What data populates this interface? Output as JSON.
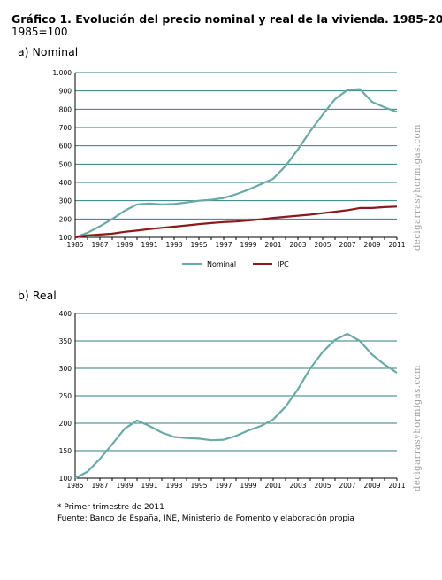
{
  "header": {
    "title": "Gráfico 1. Evolución del precio nominal y real de la vivienda.  1985-2011*",
    "subtitle": "1985=100"
  },
  "panels": {
    "a_label": "a) Nominal",
    "b_label": "b) Real"
  },
  "footnotes": {
    "note": "* Primer trimestre de 2011",
    "source": "Fuente: Banco de España, INE, Ministerio de Fomento y elaboración propia"
  },
  "watermark": "decigarrasyhormigas.com",
  "colors": {
    "nominal": "#6aaaa6",
    "ipc": "#8b1a1a",
    "grid": "#2f7f7f",
    "axis": "#000000"
  },
  "chart_data": [
    {
      "type": "line",
      "title": "a) Nominal",
      "xlim": [
        1985,
        2011
      ],
      "ylim": [
        100,
        1000
      ],
      "xticks": [
        "1985",
        "1987",
        "1989",
        "1991",
        "1993",
        "1995",
        "1997",
        "1999",
        "2001",
        "2003",
        "2005",
        "2007",
        "2009",
        "2011"
      ],
      "yticks": [
        "100",
        "200",
        "300",
        "400",
        "500",
        "600",
        "700",
        "800",
        "900",
        "1.000"
      ],
      "grid": true,
      "legend": "bottom",
      "series": [
        {
          "name": "Nominal",
          "x": [
            1985,
            1986,
            1987,
            1988,
            1989,
            1990,
            1991,
            1992,
            1993,
            1994,
            1995,
            1996,
            1997,
            1998,
            1999,
            2000,
            2001,
            2002,
            2003,
            2004,
            2005,
            2006,
            2007,
            2008,
            2009,
            2010,
            2011
          ],
          "values": [
            100,
            125,
            160,
            200,
            245,
            280,
            285,
            280,
            282,
            290,
            300,
            305,
            315,
            335,
            360,
            390,
            420,
            490,
            580,
            680,
            770,
            855,
            905,
            910,
            840,
            810,
            785
          ]
        },
        {
          "name": "IPC",
          "x": [
            1985,
            1986,
            1987,
            1988,
            1989,
            1990,
            1991,
            1992,
            1993,
            1994,
            1995,
            1996,
            1997,
            1998,
            1999,
            2000,
            2001,
            2002,
            2003,
            2004,
            2005,
            2006,
            2007,
            2008,
            2009,
            2010,
            2011
          ],
          "values": [
            100,
            110,
            115,
            120,
            130,
            137,
            145,
            152,
            158,
            165,
            172,
            178,
            183,
            186,
            192,
            198,
            206,
            212,
            218,
            224,
            232,
            240,
            248,
            260,
            260,
            265,
            268
          ]
        }
      ]
    },
    {
      "type": "line",
      "title": "b) Real",
      "xlim": [
        1985,
        2011
      ],
      "ylim": [
        100,
        400
      ],
      "xticks": [
        "1985",
        "1987",
        "1989",
        "1991",
        "1993",
        "1995",
        "1997",
        "1999",
        "2001",
        "2003",
        "2005",
        "2007",
        "2009",
        "2011"
      ],
      "yticks": [
        "100",
        "150",
        "200",
        "250",
        "300",
        "350",
        "400"
      ],
      "grid": true,
      "series": [
        {
          "name": "Real",
          "x": [
            1985,
            1986,
            1987,
            1988,
            1989,
            1990,
            1991,
            1992,
            1993,
            1994,
            1995,
            1996,
            1997,
            1998,
            1999,
            2000,
            2001,
            2002,
            2003,
            2004,
            2005,
            2006,
            2007,
            2008,
            2009,
            2010,
            2011
          ],
          "values": [
            100,
            112,
            135,
            162,
            190,
            205,
            195,
            183,
            175,
            173,
            172,
            169,
            170,
            177,
            187,
            195,
            207,
            230,
            262,
            300,
            330,
            352,
            363,
            350,
            325,
            307,
            292
          ]
        }
      ]
    }
  ]
}
